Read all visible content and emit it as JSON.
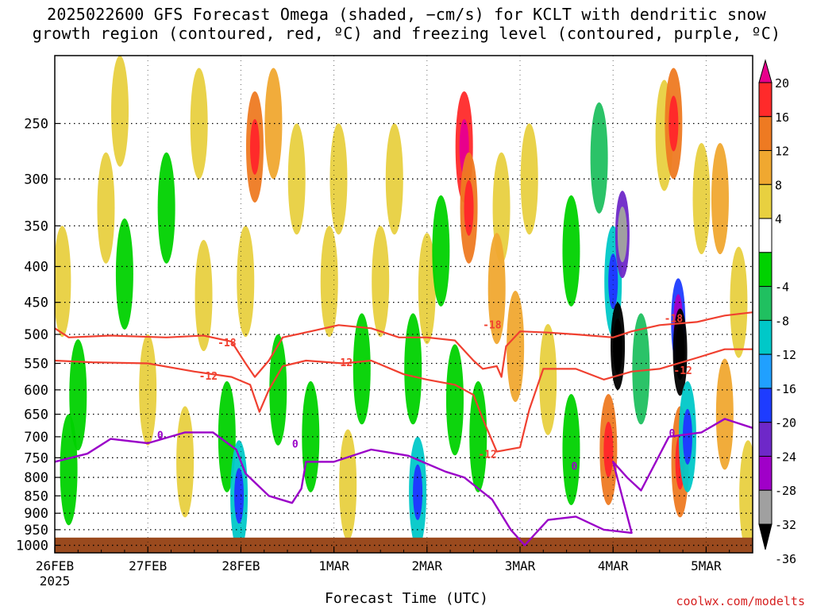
{
  "title": {
    "line1": "2025022600 GFS Forecast Omega (shaded, −cm/s) for KCLT with dendritic snow",
    "line2": "growth region (contoured, red, ºC) and freezing level (contoured, purple, ºC)"
  },
  "credit": "coolwx.com/modelts",
  "chart_data": {
    "type": "heatmap",
    "xlabel": "Forecast Time (UTC)",
    "ylabel": "",
    "x_tick_labels": [
      "26FEB",
      "27FEB",
      "28FEB",
      "1MAR",
      "2MAR",
      "3MAR",
      "4MAR",
      "5MAR"
    ],
    "x_tick_sublabels": [
      "2025",
      "",
      "",
      "",
      "",
      "",
      "",
      ""
    ],
    "x_range_days": [
      0,
      7.5
    ],
    "y_ticks": [
      250,
      300,
      350,
      400,
      450,
      500,
      550,
      600,
      650,
      700,
      750,
      800,
      850,
      900,
      950,
      1000
    ],
    "y_range_hPa": [
      200,
      1025
    ],
    "y_scale": "log-pressure (inverted)",
    "grid": "dotted",
    "colorbar": {
      "labels": [
        "20",
        "16",
        "12",
        "8",
        "4",
        "-4",
        "-8",
        "-12",
        "-16",
        "-20",
        "-24",
        "-28",
        "-32",
        "-36"
      ],
      "bins": [
        {
          "color": "#e8008c"
        },
        {
          "color": "#ff2a2a"
        },
        {
          "color": "#ee7a22"
        },
        {
          "color": "#f0a830"
        },
        {
          "color": "#e8d040"
        },
        {
          "color": "#ffffff"
        },
        {
          "color": "#00d200"
        },
        {
          "color": "#20c060"
        },
        {
          "color": "#00c8c8"
        },
        {
          "color": "#20a0ff"
        },
        {
          "color": "#1e3cff"
        },
        {
          "color": "#6e28c8"
        },
        {
          "color": "#a000c8"
        },
        {
          "color": "#a0a0a0"
        },
        {
          "color": "#000000"
        }
      ]
    },
    "omega_cells": [
      {
        "t": 0.15,
        "p": 780,
        "v": -6
      },
      {
        "t": 0.08,
        "p": 420,
        "v": 5
      },
      {
        "t": 0.25,
        "p": 610,
        "v": -6
      },
      {
        "t": 0.55,
        "p": 330,
        "v": 5
      },
      {
        "t": 0.7,
        "p": 240,
        "v": 5
      },
      {
        "t": 0.75,
        "p": 410,
        "v": -6
      },
      {
        "t": 1.0,
        "p": 600,
        "v": 5
      },
      {
        "t": 1.2,
        "p": 330,
        "v": -6
      },
      {
        "t": 1.4,
        "p": 760,
        "v": 5
      },
      {
        "t": 1.55,
        "p": 250,
        "v": 5
      },
      {
        "t": 1.6,
        "p": 440,
        "v": 5
      },
      {
        "t": 1.85,
        "p": 700,
        "v": -7
      },
      {
        "t": 1.98,
        "p": 850,
        "v": -14
      },
      {
        "t": 2.05,
        "p": 420,
        "v": 5
      },
      {
        "t": 2.15,
        "p": 270,
        "v": 13
      },
      {
        "t": 2.35,
        "p": 250,
        "v": 11
      },
      {
        "t": 2.4,
        "p": 600,
        "v": -7
      },
      {
        "t": 2.6,
        "p": 300,
        "v": 6
      },
      {
        "t": 2.75,
        "p": 700,
        "v": -6
      },
      {
        "t": 2.95,
        "p": 420,
        "v": 7
      },
      {
        "t": 3.05,
        "p": 300,
        "v": 5
      },
      {
        "t": 3.15,
        "p": 820,
        "v": 5
      },
      {
        "t": 3.3,
        "p": 560,
        "v": -6
      },
      {
        "t": 3.5,
        "p": 420,
        "v": 7
      },
      {
        "t": 3.65,
        "p": 300,
        "v": 5
      },
      {
        "t": 3.85,
        "p": 560,
        "v": -6
      },
      {
        "t": 3.9,
        "p": 840,
        "v": -14
      },
      {
        "t": 4.0,
        "p": 430,
        "v": 5
      },
      {
        "t": 4.15,
        "p": 380,
        "v": -6
      },
      {
        "t": 4.3,
        "p": 620,
        "v": -7
      },
      {
        "t": 4.4,
        "p": 270,
        "v": 16
      },
      {
        "t": 4.45,
        "p": 330,
        "v": 14
      },
      {
        "t": 4.55,
        "p": 700,
        "v": -7
      },
      {
        "t": 4.8,
        "p": 330,
        "v": 6
      },
      {
        "t": 4.75,
        "p": 430,
        "v": 10
      },
      {
        "t": 4.95,
        "p": 520,
        "v": 8
      },
      {
        "t": 5.1,
        "p": 300,
        "v": 6
      },
      {
        "t": 5.3,
        "p": 580,
        "v": 7
      },
      {
        "t": 5.55,
        "p": 380,
        "v": -6
      },
      {
        "t": 5.55,
        "p": 730,
        "v": -5
      },
      {
        "t": 5.85,
        "p": 280,
        "v": -8
      },
      {
        "t": 6.0,
        "p": 420,
        "v": -14
      },
      {
        "t": 5.95,
        "p": 730,
        "v": 14
      },
      {
        "t": 6.1,
        "p": 360,
        "v": -26
      },
      {
        "t": 6.05,
        "p": 520,
        "v": -36
      },
      {
        "t": 6.3,
        "p": 560,
        "v": -8
      },
      {
        "t": 6.55,
        "p": 260,
        "v": 5
      },
      {
        "t": 6.65,
        "p": 250,
        "v": 14
      },
      {
        "t": 6.7,
        "p": 480,
        "v": -22
      },
      {
        "t": 6.72,
        "p": 530,
        "v": -36
      },
      {
        "t": 6.72,
        "p": 760,
        "v": 14
      },
      {
        "t": 6.8,
        "p": 700,
        "v": -14
      },
      {
        "t": 6.95,
        "p": 320,
        "v": 6
      },
      {
        "t": 7.15,
        "p": 320,
        "v": 8
      },
      {
        "t": 7.2,
        "p": 650,
        "v": 8
      },
      {
        "t": 7.35,
        "p": 450,
        "v": 6
      },
      {
        "t": 7.45,
        "p": 850,
        "v": 5
      }
    ],
    "contours_red": [
      {
        "label": "-18",
        "color": "#f04030",
        "points": [
          [
            0.0,
            490
          ],
          [
            0.15,
            505
          ],
          [
            0.6,
            502
          ],
          [
            1.2,
            505
          ],
          [
            1.6,
            502
          ],
          [
            1.9,
            512
          ],
          [
            2.05,
            550
          ],
          [
            2.15,
            575
          ],
          [
            2.3,
            545
          ],
          [
            2.45,
            505
          ],
          [
            2.75,
            495
          ],
          [
            3.05,
            485
          ],
          [
            3.4,
            490
          ],
          [
            3.7,
            505
          ],
          [
            4.0,
            505
          ],
          [
            4.3,
            510
          ],
          [
            4.5,
            545
          ],
          [
            4.6,
            560
          ],
          [
            4.75,
            555
          ],
          [
            4.8,
            575
          ],
          [
            4.85,
            520
          ],
          [
            5.0,
            495
          ],
          [
            5.3,
            497
          ],
          [
            5.6,
            500
          ],
          [
            6.0,
            505
          ],
          [
            6.2,
            495
          ],
          [
            6.5,
            485
          ],
          [
            6.9,
            480
          ],
          [
            7.2,
            470
          ],
          [
            7.5,
            465
          ]
        ]
      },
      {
        "label": "-12",
        "color": "#f04030",
        "points": [
          [
            0.0,
            545
          ],
          [
            0.4,
            548
          ],
          [
            1.0,
            550
          ],
          [
            1.5,
            565
          ],
          [
            1.9,
            575
          ],
          [
            2.1,
            590
          ],
          [
            2.2,
            645
          ],
          [
            2.3,
            600
          ],
          [
            2.45,
            555
          ],
          [
            2.7,
            545
          ],
          [
            3.1,
            550
          ],
          [
            3.4,
            545
          ],
          [
            3.75,
            570
          ],
          [
            4.0,
            580
          ],
          [
            4.3,
            590
          ],
          [
            4.5,
            610
          ],
          [
            4.6,
            660
          ],
          [
            4.75,
            735
          ],
          [
            5.0,
            725
          ],
          [
            5.1,
            640
          ],
          [
            5.25,
            560
          ],
          [
            5.6,
            560
          ],
          [
            5.9,
            580
          ],
          [
            6.2,
            565
          ],
          [
            6.5,
            560
          ],
          [
            6.9,
            540
          ],
          [
            7.2,
            525
          ],
          [
            7.5,
            525
          ]
        ]
      }
    ],
    "contours_purple": [
      {
        "label": "0",
        "color": "#9a00c8",
        "points": [
          [
            0.0,
            760
          ],
          [
            0.35,
            740
          ],
          [
            0.6,
            705
          ],
          [
            1.0,
            715
          ],
          [
            1.4,
            690
          ],
          [
            1.7,
            690
          ],
          [
            1.95,
            730
          ],
          [
            2.05,
            790
          ],
          [
            2.3,
            850
          ],
          [
            2.55,
            870
          ],
          [
            2.65,
            830
          ],
          [
            2.7,
            760
          ],
          [
            3.0,
            760
          ],
          [
            3.4,
            730
          ],
          [
            3.8,
            745
          ],
          [
            3.95,
            760
          ],
          [
            4.2,
            785
          ],
          [
            4.4,
            800
          ],
          [
            4.7,
            860
          ],
          [
            4.9,
            950
          ],
          [
            5.05,
            1000
          ],
          [
            5.3,
            920
          ],
          [
            5.6,
            910
          ],
          [
            5.9,
            950
          ],
          [
            6.2,
            960
          ],
          [
            6.0,
            760
          ],
          [
            6.15,
            800
          ],
          [
            6.3,
            835
          ],
          [
            6.6,
            700
          ],
          [
            6.95,
            690
          ],
          [
            7.2,
            660
          ],
          [
            7.5,
            680
          ]
        ]
      }
    ],
    "contour_labels": [
      {
        "text": "-18",
        "t": 1.75,
        "p": 520,
        "color": "#f04030"
      },
      {
        "text": "-12",
        "t": 1.55,
        "p": 580,
        "color": "#f04030"
      },
      {
        "text": "-12",
        "t": 3.0,
        "p": 555,
        "color": "#f04030"
      },
      {
        "text": "-18",
        "t": 4.6,
        "p": 490,
        "color": "#f04030"
      },
      {
        "text": "-12",
        "t": 4.55,
        "p": 750,
        "color": "#f04030"
      },
      {
        "text": "-18",
        "t": 6.55,
        "p": 480,
        "color": "#f04030"
      },
      {
        "text": "-12",
        "t": 6.65,
        "p": 570,
        "color": "#f04030"
      },
      {
        "text": "0",
        "t": 1.1,
        "p": 705,
        "color": "#9a00c8"
      },
      {
        "text": "0",
        "t": 2.55,
        "p": 725,
        "color": "#9a00c8"
      },
      {
        "text": "0",
        "t": 5.55,
        "p": 780,
        "color": "#9a00c8"
      },
      {
        "text": "0",
        "t": 6.6,
        "p": 700,
        "color": "#9a00c8"
      }
    ],
    "ground": {
      "label": "",
      "p_top": 975,
      "color": "#9a4a1e"
    }
  }
}
